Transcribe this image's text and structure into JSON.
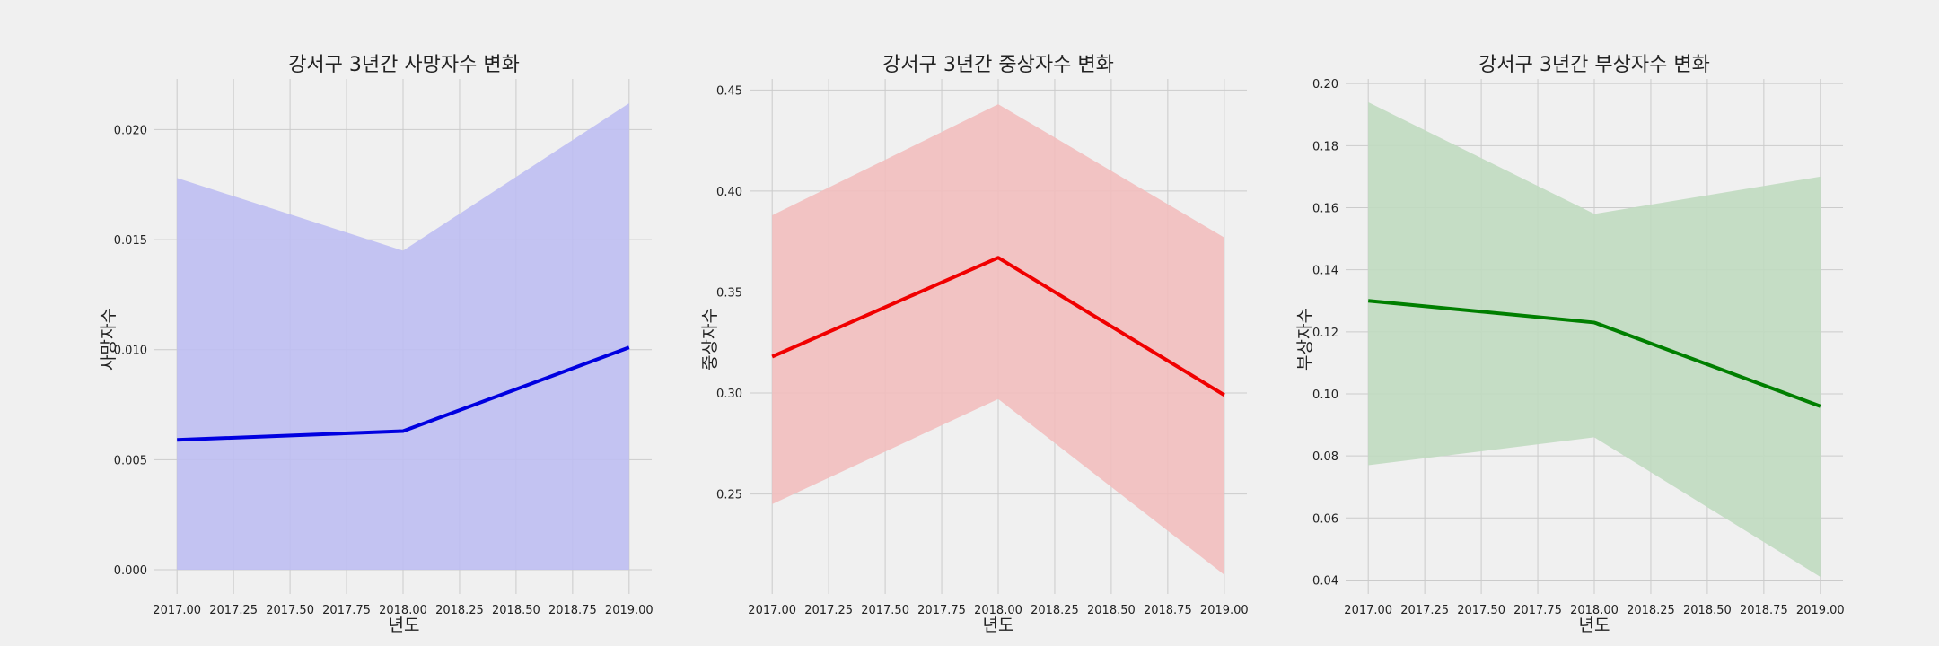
{
  "chart_data": [
    {
      "type": "line",
      "title": "강서구 3년간 사망자수 변화",
      "xlabel": "년도",
      "ylabel": "사망자수",
      "x": [
        2017,
        2018,
        2019
      ],
      "xlim": [
        2016.9,
        2019.1
      ],
      "xticks": [
        "2017.00",
        "2017.25",
        "2017.50",
        "2017.75",
        "2018.00",
        "2018.25",
        "2018.50",
        "2018.75",
        "2019.00"
      ],
      "ylim": [
        -0.0011,
        0.0223
      ],
      "yticks": [
        "0.000",
        "0.005",
        "0.010",
        "0.015",
        "0.020"
      ],
      "series": [
        {
          "values": [
            0.0059,
            0.0063,
            0.0101
          ],
          "ci_lower": [
            0.0,
            0.0,
            0.0
          ],
          "ci_upper": [
            0.0178,
            0.0145,
            0.0212
          ],
          "color": "#0000e0",
          "fill": "#bebef2"
        }
      ],
      "grid": true
    },
    {
      "type": "line",
      "title": "강서구 3년간 중상자수 변화",
      "xlabel": "년도",
      "ylabel": "중상자수",
      "x": [
        2017,
        2018,
        2019
      ],
      "xlim": [
        2016.9,
        2019.1
      ],
      "xticks": [
        "2017.00",
        "2017.25",
        "2017.50",
        "2017.75",
        "2018.00",
        "2018.25",
        "2018.50",
        "2018.75",
        "2019.00"
      ],
      "ylim": [
        0.2005,
        0.4555
      ],
      "yticks": [
        "0.25",
        "0.30",
        "0.35",
        "0.40",
        "0.45"
      ],
      "series": [
        {
          "values": [
            0.318,
            0.367,
            0.299
          ],
          "ci_lower": [
            0.245,
            0.297,
            0.21
          ],
          "ci_upper": [
            0.388,
            0.443,
            0.377
          ],
          "color": "#f00000",
          "fill": "#f2bebe"
        }
      ],
      "grid": true
    },
    {
      "type": "line",
      "title": "강서구 3년간 부상자수 변화",
      "xlabel": "년도",
      "ylabel": "부상자수",
      "x": [
        2017,
        2018,
        2019
      ],
      "xlim": [
        2016.9,
        2019.1
      ],
      "xticks": [
        "2017.00",
        "2017.25",
        "2017.50",
        "2017.75",
        "2018.00",
        "2018.25",
        "2018.50",
        "2018.75",
        "2019.00"
      ],
      "ylim": [
        0.0355,
        0.2015
      ],
      "yticks": [
        "0.04",
        "0.06",
        "0.08",
        "0.10",
        "0.12",
        "0.14",
        "0.16",
        "0.18",
        "0.20"
      ],
      "series": [
        {
          "values": [
            0.13,
            0.123,
            0.096
          ],
          "ci_lower": [
            0.077,
            0.086,
            0.041
          ],
          "ci_upper": [
            0.194,
            0.158,
            0.17
          ],
          "color": "#007f00",
          "fill": "#c0dac0"
        }
      ],
      "grid": true
    }
  ]
}
